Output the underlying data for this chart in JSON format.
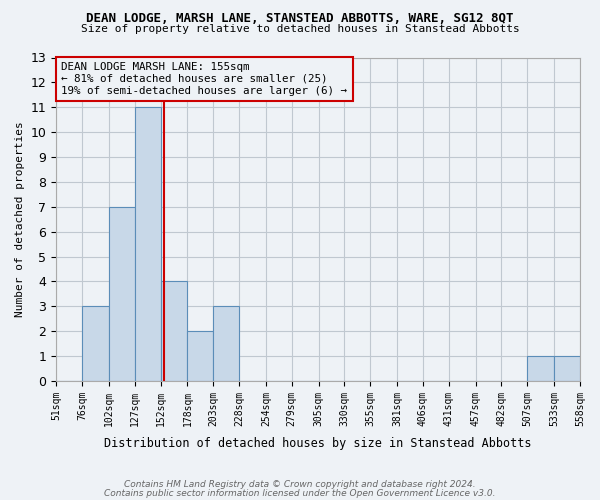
{
  "title": "DEAN LODGE, MARSH LANE, STANSTEAD ABBOTTS, WARE, SG12 8QT",
  "subtitle": "Size of property relative to detached houses in Stanstead Abbotts",
  "xlabel": "Distribution of detached houses by size in Stanstead Abbotts",
  "ylabel": "Number of detached properties",
  "footnote1": "Contains HM Land Registry data © Crown copyright and database right 2024.",
  "footnote2": "Contains public sector information licensed under the Open Government Licence v3.0.",
  "bin_edges": [
    51,
    76,
    102,
    127,
    152,
    178,
    203,
    228,
    254,
    279,
    305,
    330,
    355,
    381,
    406,
    431,
    457,
    482,
    507,
    533,
    558
  ],
  "bar_heights": [
    0,
    3,
    7,
    11,
    4,
    2,
    3,
    0,
    0,
    0,
    0,
    0,
    0,
    0,
    0,
    0,
    0,
    0,
    1,
    1
  ],
  "bar_color": "#c8d8e8",
  "bar_edgecolor": "#5b8db8",
  "bar_linewidth": 0.8,
  "vline_x": 155,
  "vline_color": "#cc0000",
  "ylim": [
    0,
    13
  ],
  "yticks": [
    0,
    1,
    2,
    3,
    4,
    5,
    6,
    7,
    8,
    9,
    10,
    11,
    12,
    13
  ],
  "annotation_title": "DEAN LODGE MARSH LANE: 155sqm",
  "annotation_line1": "← 81% of detached houses are smaller (25)",
  "annotation_line2": "19% of semi-detached houses are larger (6) →",
  "annotation_box_color": "#cc0000",
  "grid_color": "#c0c8d0",
  "background_color": "#eef2f6"
}
